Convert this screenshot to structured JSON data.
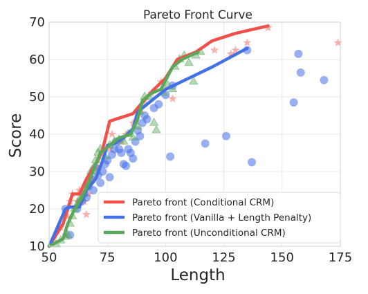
{
  "chart_data": {
    "type": "scatter",
    "title": "Pareto Front Curve",
    "xlabel": "Length",
    "ylabel": "Score",
    "xlim": [
      50,
      175
    ],
    "ylim": [
      10,
      70
    ],
    "xticks": [
      50,
      75,
      100,
      125,
      150,
      175
    ],
    "yticks": [
      10,
      20,
      30,
      40,
      50,
      60,
      70
    ],
    "grid": true,
    "legend_position": "lower-right",
    "colors": {
      "conditional": "#f0504a",
      "vanilla": "#4470e6",
      "unconditional": "#5aa65a"
    },
    "lines": [
      {
        "name": "Pareto front (Conditional CRM)",
        "color": "#f0504a",
        "points": [
          [
            50,
            10
          ],
          [
            56,
            16
          ],
          [
            58,
            20
          ],
          [
            60,
            24
          ],
          [
            63,
            24
          ],
          [
            66,
            28
          ],
          [
            71,
            33
          ],
          [
            73,
            36
          ],
          [
            76,
            43.5
          ],
          [
            86,
            45.5
          ],
          [
            92,
            50
          ],
          [
            95,
            52
          ],
          [
            100,
            55
          ],
          [
            105,
            60
          ],
          [
            113,
            62
          ],
          [
            120,
            65
          ],
          [
            130,
            67
          ],
          [
            144,
            69
          ]
        ]
      },
      {
        "name": "Pareto front (Vanilla + Length Penalty)",
        "color": "#4470e6",
        "points": [
          [
            50,
            10
          ],
          [
            57,
            20
          ],
          [
            59,
            20.5
          ],
          [
            63,
            20.5
          ],
          [
            66,
            25
          ],
          [
            70,
            28
          ],
          [
            73,
            33
          ],
          [
            75,
            37
          ],
          [
            78,
            37.5
          ],
          [
            82,
            39
          ],
          [
            86,
            41.5
          ],
          [
            88,
            46
          ],
          [
            90,
            47
          ],
          [
            94,
            49
          ],
          [
            100,
            52
          ],
          [
            110,
            55
          ],
          [
            120,
            58
          ],
          [
            135,
            63
          ]
        ]
      },
      {
        "name": "Pareto front (Unconditional CRM)",
        "color": "#5aa65a",
        "points": [
          [
            50,
            10
          ],
          [
            56,
            12
          ],
          [
            58,
            16
          ],
          [
            61,
            20
          ],
          [
            64,
            23
          ],
          [
            67,
            27
          ],
          [
            70,
            32
          ],
          [
            72,
            35
          ],
          [
            75,
            36.5
          ],
          [
            80,
            39
          ],
          [
            85,
            40
          ],
          [
            88,
            44
          ],
          [
            90,
            49
          ],
          [
            94,
            51
          ],
          [
            98,
            52
          ],
          [
            103,
            58
          ],
          [
            107,
            60
          ],
          [
            114,
            62
          ]
        ]
      }
    ],
    "scatter": [
      {
        "name": "Conditional CRM points",
        "marker": "star",
        "color": "#f0504a",
        "points": [
          [
            55,
            15
          ],
          [
            57,
            13
          ],
          [
            58,
            18
          ],
          [
            59,
            22
          ],
          [
            60,
            24
          ],
          [
            62,
            22
          ],
          [
            63,
            25
          ],
          [
            65,
            22
          ],
          [
            66,
            18.5
          ],
          [
            67,
            24
          ],
          [
            69,
            28
          ],
          [
            71,
            31
          ],
          [
            73,
            35
          ],
          [
            76,
            36
          ],
          [
            77,
            40
          ],
          [
            79,
            38
          ],
          [
            81,
            38
          ],
          [
            83,
            40
          ],
          [
            86,
            43
          ],
          [
            89,
            46
          ],
          [
            91,
            49
          ],
          [
            94,
            51
          ],
          [
            98,
            54
          ],
          [
            103,
            49.5
          ],
          [
            121,
            62.5
          ],
          [
            128,
            61.5
          ],
          [
            130,
            62.5
          ],
          [
            135,
            64.5
          ],
          [
            144,
            68.5
          ],
          [
            174,
            64.5
          ]
        ]
      },
      {
        "name": "Vanilla + Length Penalty points",
        "marker": "circle",
        "color": "#4470e6",
        "points": [
          [
            57,
            20
          ],
          [
            59,
            13
          ],
          [
            62,
            20
          ],
          [
            64,
            22
          ],
          [
            65,
            24
          ],
          [
            66,
            23
          ],
          [
            67,
            26
          ],
          [
            68,
            28
          ],
          [
            69,
            25
          ],
          [
            70,
            31
          ],
          [
            71,
            29
          ],
          [
            72,
            27
          ],
          [
            73,
            30
          ],
          [
            74,
            32
          ],
          [
            75,
            33
          ],
          [
            76,
            28.5
          ],
          [
            77,
            34.5
          ],
          [
            78,
            36
          ],
          [
            79,
            38
          ],
          [
            80,
            36
          ],
          [
            81,
            35
          ],
          [
            82,
            32
          ],
          [
            83,
            31.5
          ],
          [
            84,
            36
          ],
          [
            85,
            35
          ],
          [
            86,
            33.5
          ],
          [
            87,
            38
          ],
          [
            88,
            41
          ],
          [
            89,
            39.5
          ],
          [
            90,
            43
          ],
          [
            91,
            45
          ],
          [
            92,
            44
          ],
          [
            95,
            47
          ],
          [
            97,
            48
          ],
          [
            100,
            50.5
          ],
          [
            103,
            53
          ],
          [
            102,
            34
          ],
          [
            117,
            37.5
          ],
          [
            126,
            39.5
          ],
          [
            137,
            32.5
          ],
          [
            155,
            48.5
          ],
          [
            157,
            61.5
          ],
          [
            158,
            56.5
          ],
          [
            168,
            54.5
          ],
          [
            135,
            62.5
          ]
        ]
      },
      {
        "name": "Unconditional CRM points",
        "marker": "triangle",
        "color": "#5aa65a",
        "points": [
          [
            53,
            10.5
          ],
          [
            55,
            11.5
          ],
          [
            57,
            12.5
          ],
          [
            58,
            13
          ],
          [
            59,
            16
          ],
          [
            60,
            18
          ],
          [
            61,
            20
          ],
          [
            62,
            21
          ],
          [
            63,
            22.5
          ],
          [
            64,
            23
          ],
          [
            65,
            25
          ],
          [
            66,
            26
          ],
          [
            67,
            27
          ],
          [
            68,
            30
          ],
          [
            69,
            31
          ],
          [
            70,
            33
          ],
          [
            71,
            35
          ],
          [
            72,
            36
          ],
          [
            74,
            34
          ],
          [
            76,
            37
          ],
          [
            78,
            38
          ],
          [
            80,
            38.5
          ],
          [
            82,
            38
          ],
          [
            84,
            40
          ],
          [
            86,
            39
          ],
          [
            88,
            42
          ],
          [
            89,
            46
          ],
          [
            90,
            48
          ],
          [
            91,
            50
          ],
          [
            93,
            50
          ],
          [
            95,
            43
          ],
          [
            96,
            41
          ],
          [
            99,
            51
          ],
          [
            101,
            53
          ],
          [
            103,
            52
          ],
          [
            104,
            58
          ],
          [
            106,
            60
          ],
          [
            108,
            61
          ],
          [
            110,
            59
          ],
          [
            112,
            54
          ],
          [
            113,
            61
          ],
          [
            115,
            62
          ]
        ]
      }
    ]
  }
}
